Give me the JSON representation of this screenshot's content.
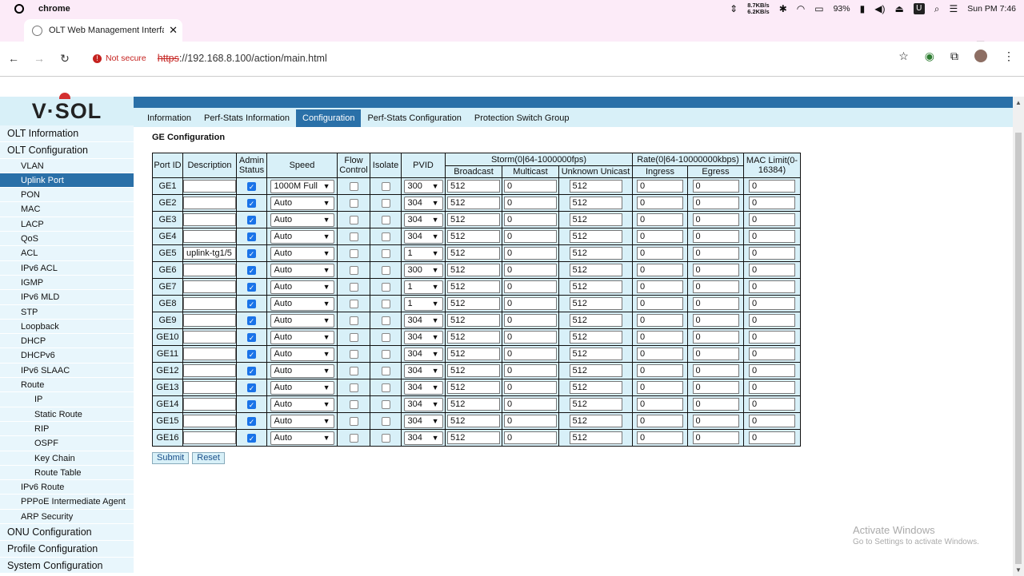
{
  "os": {
    "app": "chrome",
    "net_up": "8.7KB/s",
    "net_down": "6.2KB/s",
    "battery": "93%",
    "clock": "Sun PM 7:46",
    "u_label": "U"
  },
  "browser": {
    "tab_title": "OLT Web Management Interface",
    "security": "Not secure",
    "url_proto": "https",
    "url_rest": "://192.168.8.100/action/main.html"
  },
  "logo": "V·SOL",
  "sidebar": [
    {
      "label": "OLT Information",
      "level": 1
    },
    {
      "label": "OLT Configuration",
      "level": 1
    },
    {
      "label": "VLAN",
      "level": 2
    },
    {
      "label": "Uplink Port",
      "level": 2,
      "active": true
    },
    {
      "label": "PON",
      "level": 2
    },
    {
      "label": "MAC",
      "level": 2
    },
    {
      "label": "LACP",
      "level": 2
    },
    {
      "label": "QoS",
      "level": 2
    },
    {
      "label": "ACL",
      "level": 2
    },
    {
      "label": "IPv6 ACL",
      "level": 2
    },
    {
      "label": "IGMP",
      "level": 2
    },
    {
      "label": "IPv6 MLD",
      "level": 2
    },
    {
      "label": "STP",
      "level": 2
    },
    {
      "label": "Loopback",
      "level": 2
    },
    {
      "label": "DHCP",
      "level": 2
    },
    {
      "label": "DHCPv6",
      "level": 2
    },
    {
      "label": "IPv6 SLAAC",
      "level": 2
    },
    {
      "label": "Route",
      "level": 2
    },
    {
      "label": "IP",
      "level": 3
    },
    {
      "label": "Static Route",
      "level": 3
    },
    {
      "label": "RIP",
      "level": 3
    },
    {
      "label": "OSPF",
      "level": 3
    },
    {
      "label": "Key Chain",
      "level": 3
    },
    {
      "label": "Route Table",
      "level": 3
    },
    {
      "label": "IPv6 Route",
      "level": 2
    },
    {
      "label": "PPPoE Intermediate Agent",
      "level": 2
    },
    {
      "label": "ARP Security",
      "level": 2
    },
    {
      "label": "ONU Configuration",
      "level": 1
    },
    {
      "label": "Profile Configuration",
      "level": 1
    },
    {
      "label": "System Configuration",
      "level": 1
    }
  ],
  "tabs": [
    {
      "label": "Information"
    },
    {
      "label": "Perf-Stats Information"
    },
    {
      "label": "Configuration",
      "active": true
    },
    {
      "label": "Perf-Stats Configuration"
    },
    {
      "label": "Protection Switch Group"
    }
  ],
  "section_title": "GE Configuration",
  "table": {
    "h_port": "Port ID",
    "h_desc": "Description",
    "h_admin": "Admin Status",
    "h_speed": "Speed",
    "h_flow": "Flow Control",
    "h_iso": "Isolate",
    "h_pvid": "PVID",
    "h_storm": "Storm(0|64-1000000fps)",
    "h_bcast": "Broadcast",
    "h_mcast": "Multicast",
    "h_ucast": "Unknown Unicast",
    "h_rate": "Rate(0|64-10000000kbps)",
    "h_in": "Ingress",
    "h_eg": "Egress",
    "h_mac": "MAC Limit(0-16384)",
    "rows": [
      {
        "port": "GE1",
        "desc": "",
        "admin": true,
        "speed": "1000M Full",
        "flow": false,
        "iso": false,
        "pvid": "300",
        "bcast": "512",
        "mcast": "0",
        "ucast": "512",
        "ingress": "0",
        "egress": "0",
        "mac": "0"
      },
      {
        "port": "GE2",
        "desc": "",
        "admin": true,
        "speed": "Auto",
        "flow": false,
        "iso": false,
        "pvid": "304",
        "bcast": "512",
        "mcast": "0",
        "ucast": "512",
        "ingress": "0",
        "egress": "0",
        "mac": "0"
      },
      {
        "port": "GE3",
        "desc": "",
        "admin": true,
        "speed": "Auto",
        "flow": false,
        "iso": false,
        "pvid": "304",
        "bcast": "512",
        "mcast": "0",
        "ucast": "512",
        "ingress": "0",
        "egress": "0",
        "mac": "0"
      },
      {
        "port": "GE4",
        "desc": "",
        "admin": true,
        "speed": "Auto",
        "flow": false,
        "iso": false,
        "pvid": "304",
        "bcast": "512",
        "mcast": "0",
        "ucast": "512",
        "ingress": "0",
        "egress": "0",
        "mac": "0"
      },
      {
        "port": "GE5",
        "desc": "uplink-tg1/5",
        "admin": true,
        "speed": "Auto",
        "flow": false,
        "iso": false,
        "pvid": "1",
        "bcast": "512",
        "mcast": "0",
        "ucast": "512",
        "ingress": "0",
        "egress": "0",
        "mac": "0"
      },
      {
        "port": "GE6",
        "desc": "",
        "admin": true,
        "speed": "Auto",
        "flow": false,
        "iso": false,
        "pvid": "300",
        "bcast": "512",
        "mcast": "0",
        "ucast": "512",
        "ingress": "0",
        "egress": "0",
        "mac": "0"
      },
      {
        "port": "GE7",
        "desc": "",
        "admin": true,
        "speed": "Auto",
        "flow": false,
        "iso": false,
        "pvid": "1",
        "bcast": "512",
        "mcast": "0",
        "ucast": "512",
        "ingress": "0",
        "egress": "0",
        "mac": "0"
      },
      {
        "port": "GE8",
        "desc": "",
        "admin": true,
        "speed": "Auto",
        "flow": false,
        "iso": false,
        "pvid": "1",
        "bcast": "512",
        "mcast": "0",
        "ucast": "512",
        "ingress": "0",
        "egress": "0",
        "mac": "0"
      },
      {
        "port": "GE9",
        "desc": "",
        "admin": true,
        "speed": "Auto",
        "flow": false,
        "iso": false,
        "pvid": "304",
        "bcast": "512",
        "mcast": "0",
        "ucast": "512",
        "ingress": "0",
        "egress": "0",
        "mac": "0"
      },
      {
        "port": "GE10",
        "desc": "",
        "admin": true,
        "speed": "Auto",
        "flow": false,
        "iso": false,
        "pvid": "304",
        "bcast": "512",
        "mcast": "0",
        "ucast": "512",
        "ingress": "0",
        "egress": "0",
        "mac": "0"
      },
      {
        "port": "GE11",
        "desc": "",
        "admin": true,
        "speed": "Auto",
        "flow": false,
        "iso": false,
        "pvid": "304",
        "bcast": "512",
        "mcast": "0",
        "ucast": "512",
        "ingress": "0",
        "egress": "0",
        "mac": "0"
      },
      {
        "port": "GE12",
        "desc": "",
        "admin": true,
        "speed": "Auto",
        "flow": false,
        "iso": false,
        "pvid": "304",
        "bcast": "512",
        "mcast": "0",
        "ucast": "512",
        "ingress": "0",
        "egress": "0",
        "mac": "0"
      },
      {
        "port": "GE13",
        "desc": "",
        "admin": true,
        "speed": "Auto",
        "flow": false,
        "iso": false,
        "pvid": "304",
        "bcast": "512",
        "mcast": "0",
        "ucast": "512",
        "ingress": "0",
        "egress": "0",
        "mac": "0"
      },
      {
        "port": "GE14",
        "desc": "",
        "admin": true,
        "speed": "Auto",
        "flow": false,
        "iso": false,
        "pvid": "304",
        "bcast": "512",
        "mcast": "0",
        "ucast": "512",
        "ingress": "0",
        "egress": "0",
        "mac": "0"
      },
      {
        "port": "GE15",
        "desc": "",
        "admin": true,
        "speed": "Auto",
        "flow": false,
        "iso": false,
        "pvid": "304",
        "bcast": "512",
        "mcast": "0",
        "ucast": "512",
        "ingress": "0",
        "egress": "0",
        "mac": "0"
      },
      {
        "port": "GE16",
        "desc": "",
        "admin": true,
        "speed": "Auto",
        "flow": false,
        "iso": false,
        "pvid": "304",
        "bcast": "512",
        "mcast": "0",
        "ucast": "512",
        "ingress": "0",
        "egress": "0",
        "mac": "0"
      }
    ]
  },
  "buttons": {
    "submit": "Submit",
    "reset": "Reset"
  },
  "watermark": {
    "line1": "Activate Windows",
    "line2": "Go to Settings to activate Windows."
  },
  "colors": {
    "accent": "#2a70a8",
    "panel": "#d8f0f8",
    "browser_chrome": "#fcebf8"
  }
}
